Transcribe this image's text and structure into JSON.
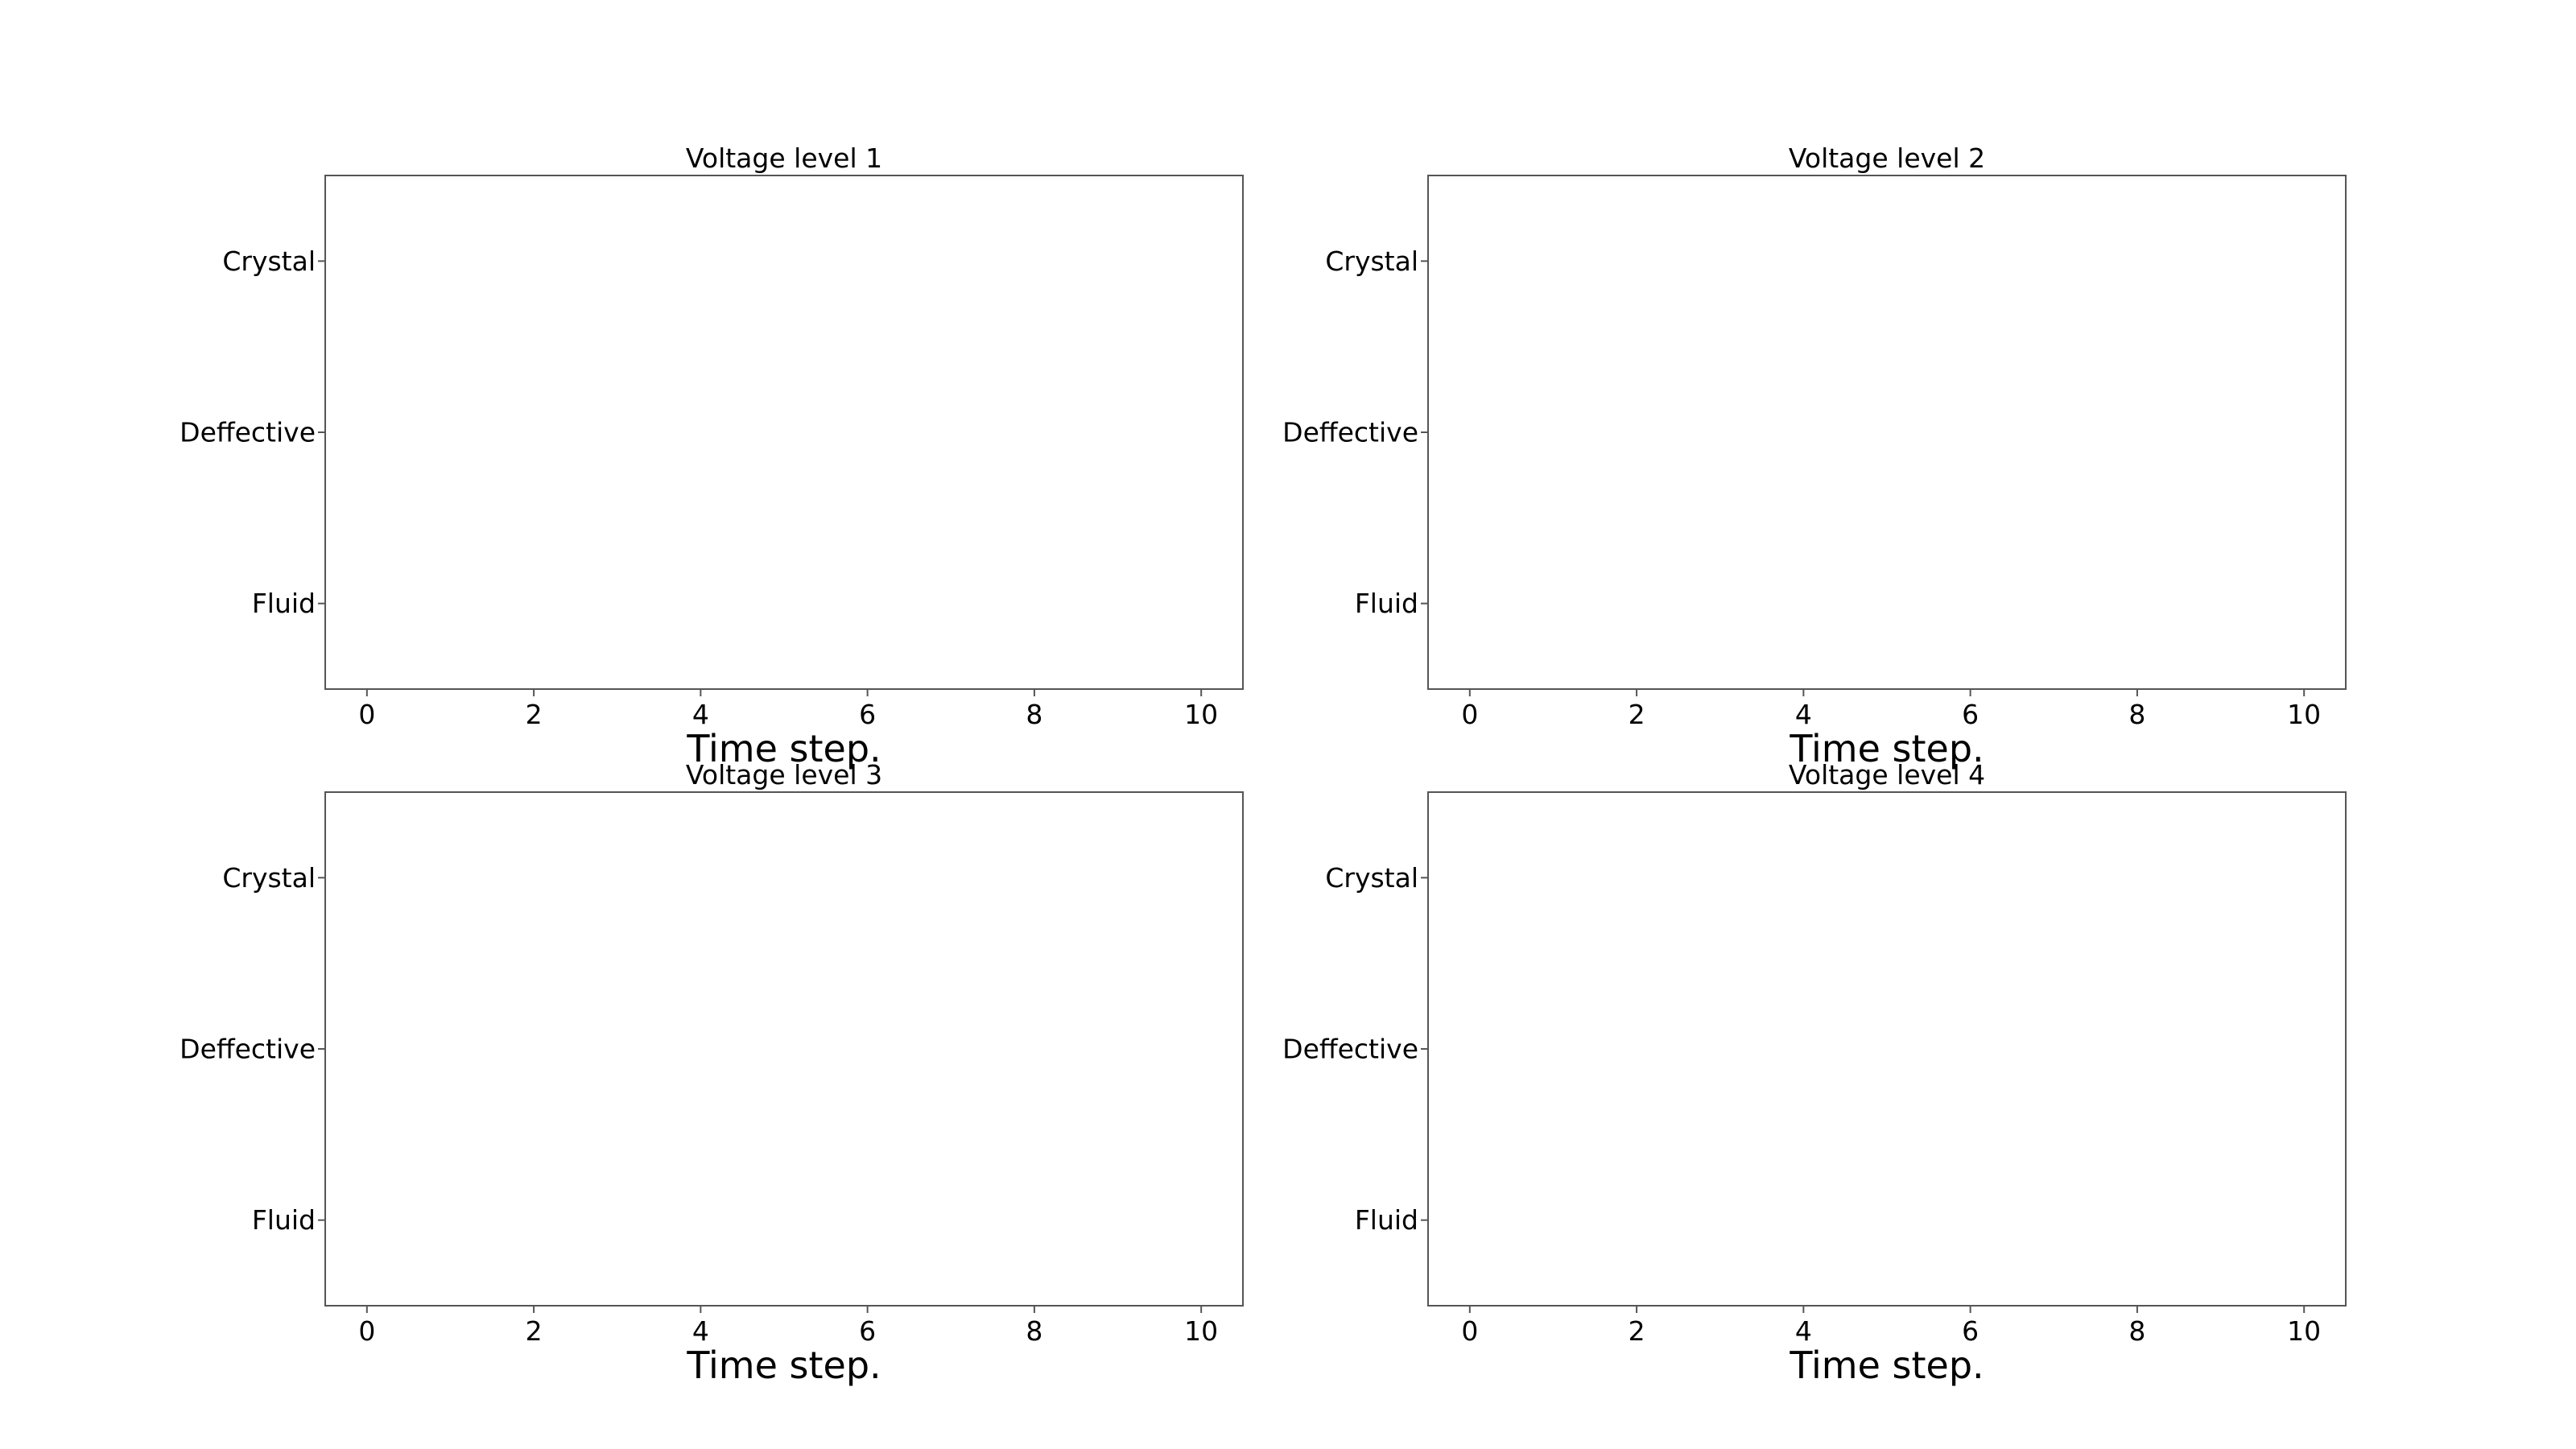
{
  "chart_data": [
    {
      "type": "scatter",
      "title": "Voltage level 1",
      "xlabel": "Time step.",
      "ylabel": "",
      "xlim": [
        -0.5,
        10.5
      ],
      "xticks": [
        0,
        2,
        4,
        6,
        8,
        10
      ],
      "yticks": [
        "Crystal",
        "Deffective",
        "Fluid"
      ],
      "grid": false,
      "series": []
    },
    {
      "type": "scatter",
      "title": "Voltage level 2",
      "xlabel": "Time step.",
      "ylabel": "",
      "xlim": [
        -0.5,
        10.5
      ],
      "xticks": [
        0,
        2,
        4,
        6,
        8,
        10
      ],
      "yticks": [
        "Crystal",
        "Deffective",
        "Fluid"
      ],
      "grid": false,
      "series": []
    },
    {
      "type": "scatter",
      "title": "Voltage level 3",
      "xlabel": "Time step.",
      "ylabel": "",
      "xlim": [
        -0.5,
        10.5
      ],
      "xticks": [
        0,
        2,
        4,
        6,
        8,
        10
      ],
      "yticks": [
        "Crystal",
        "Deffective",
        "Fluid"
      ],
      "grid": false,
      "series": []
    },
    {
      "type": "scatter",
      "title": "Voltage level 4",
      "xlabel": "Time step.",
      "ylabel": "",
      "xlim": [
        -0.5,
        10.5
      ],
      "xticks": [
        0,
        2,
        4,
        6,
        8,
        10
      ],
      "yticks": [
        "Crystal",
        "Deffective",
        "Fluid"
      ],
      "grid": false,
      "series": []
    }
  ]
}
